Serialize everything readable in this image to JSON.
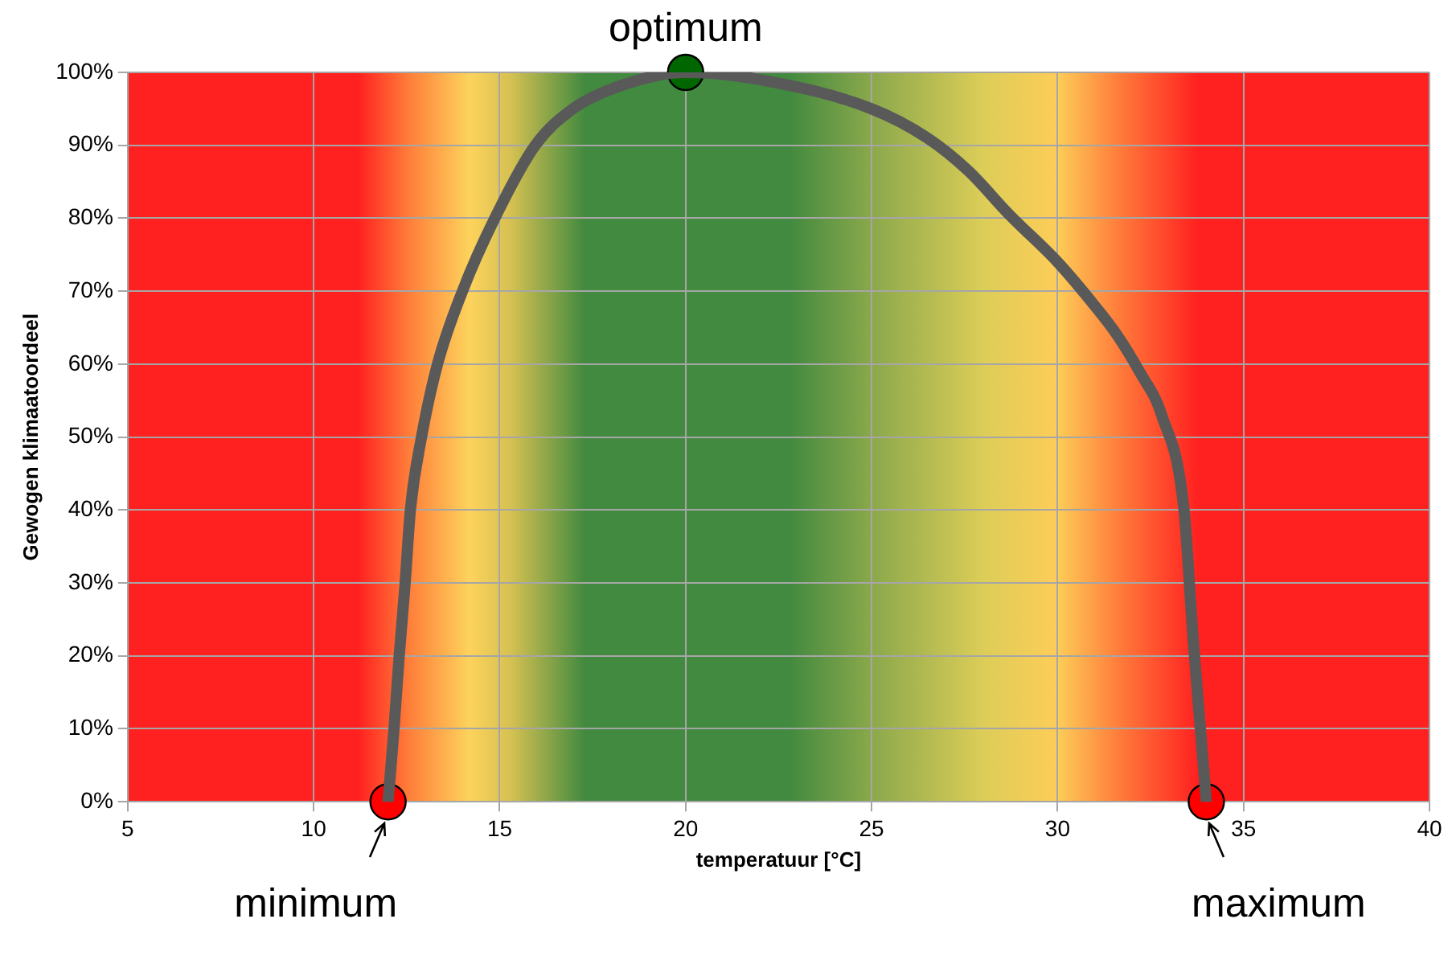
{
  "chart_data": {
    "type": "line",
    "xlabel": "temperatuur [°C]",
    "ylabel": "Gewogen klimaatoordeel",
    "series": [
      {
        "color": "#595959",
        "marker": "none",
        "x": [
          12,
          12.16,
          12.3,
          12.46,
          12.6,
          12.9,
          13.33,
          14,
          14.87,
          15.96,
          16.97,
          18.16,
          20,
          22,
          25,
          26.5,
          27.6,
          28.7,
          30,
          31,
          31.6,
          32.2,
          32.8,
          33.4,
          33.65,
          34
        ],
        "values": [
          0,
          10,
          20,
          30,
          40,
          50,
          60,
          70,
          80,
          90,
          95,
          98,
          100,
          99,
          95,
          91,
          86.5,
          80.5,
          74,
          68,
          64,
          59,
          53,
          40,
          22,
          0
        ]
      },
      {
        "type": "scatter",
        "marker": "circle",
        "colors": [
          "#ff0000",
          "#006600",
          "#ff0000"
        ],
        "x": [
          12,
          20,
          34
        ],
        "values": [
          0,
          100,
          0
        ]
      }
    ],
    "xlim": [
      5,
      40
    ],
    "xticks": [
      5,
      10,
      15,
      20,
      25,
      30,
      35,
      40
    ],
    "ylim": [
      0,
      100
    ],
    "yticks": [
      {
        "value": 0,
        "label": "0%"
      },
      {
        "value": 10,
        "label": "10%"
      },
      {
        "value": 20,
        "label": "20%"
      },
      {
        "value": 30,
        "label": "30%"
      },
      {
        "value": 40,
        "label": "40%"
      },
      {
        "value": 50,
        "label": "50%"
      },
      {
        "value": 60,
        "label": "60%"
      },
      {
        "value": 70,
        "label": "70%"
      },
      {
        "value": 80,
        "label": "80%"
      },
      {
        "value": 90,
        "label": "90%"
      },
      {
        "value": 100,
        "label": "100%"
      }
    ],
    "grid": true,
    "legend": false,
    "annotations": [
      {
        "text": "minimum",
        "x": 12,
        "y": 0
      },
      {
        "text": "optimum",
        "x": 20,
        "y": 100
      },
      {
        "text": "maximum",
        "x": 34,
        "y": 0
      }
    ]
  }
}
